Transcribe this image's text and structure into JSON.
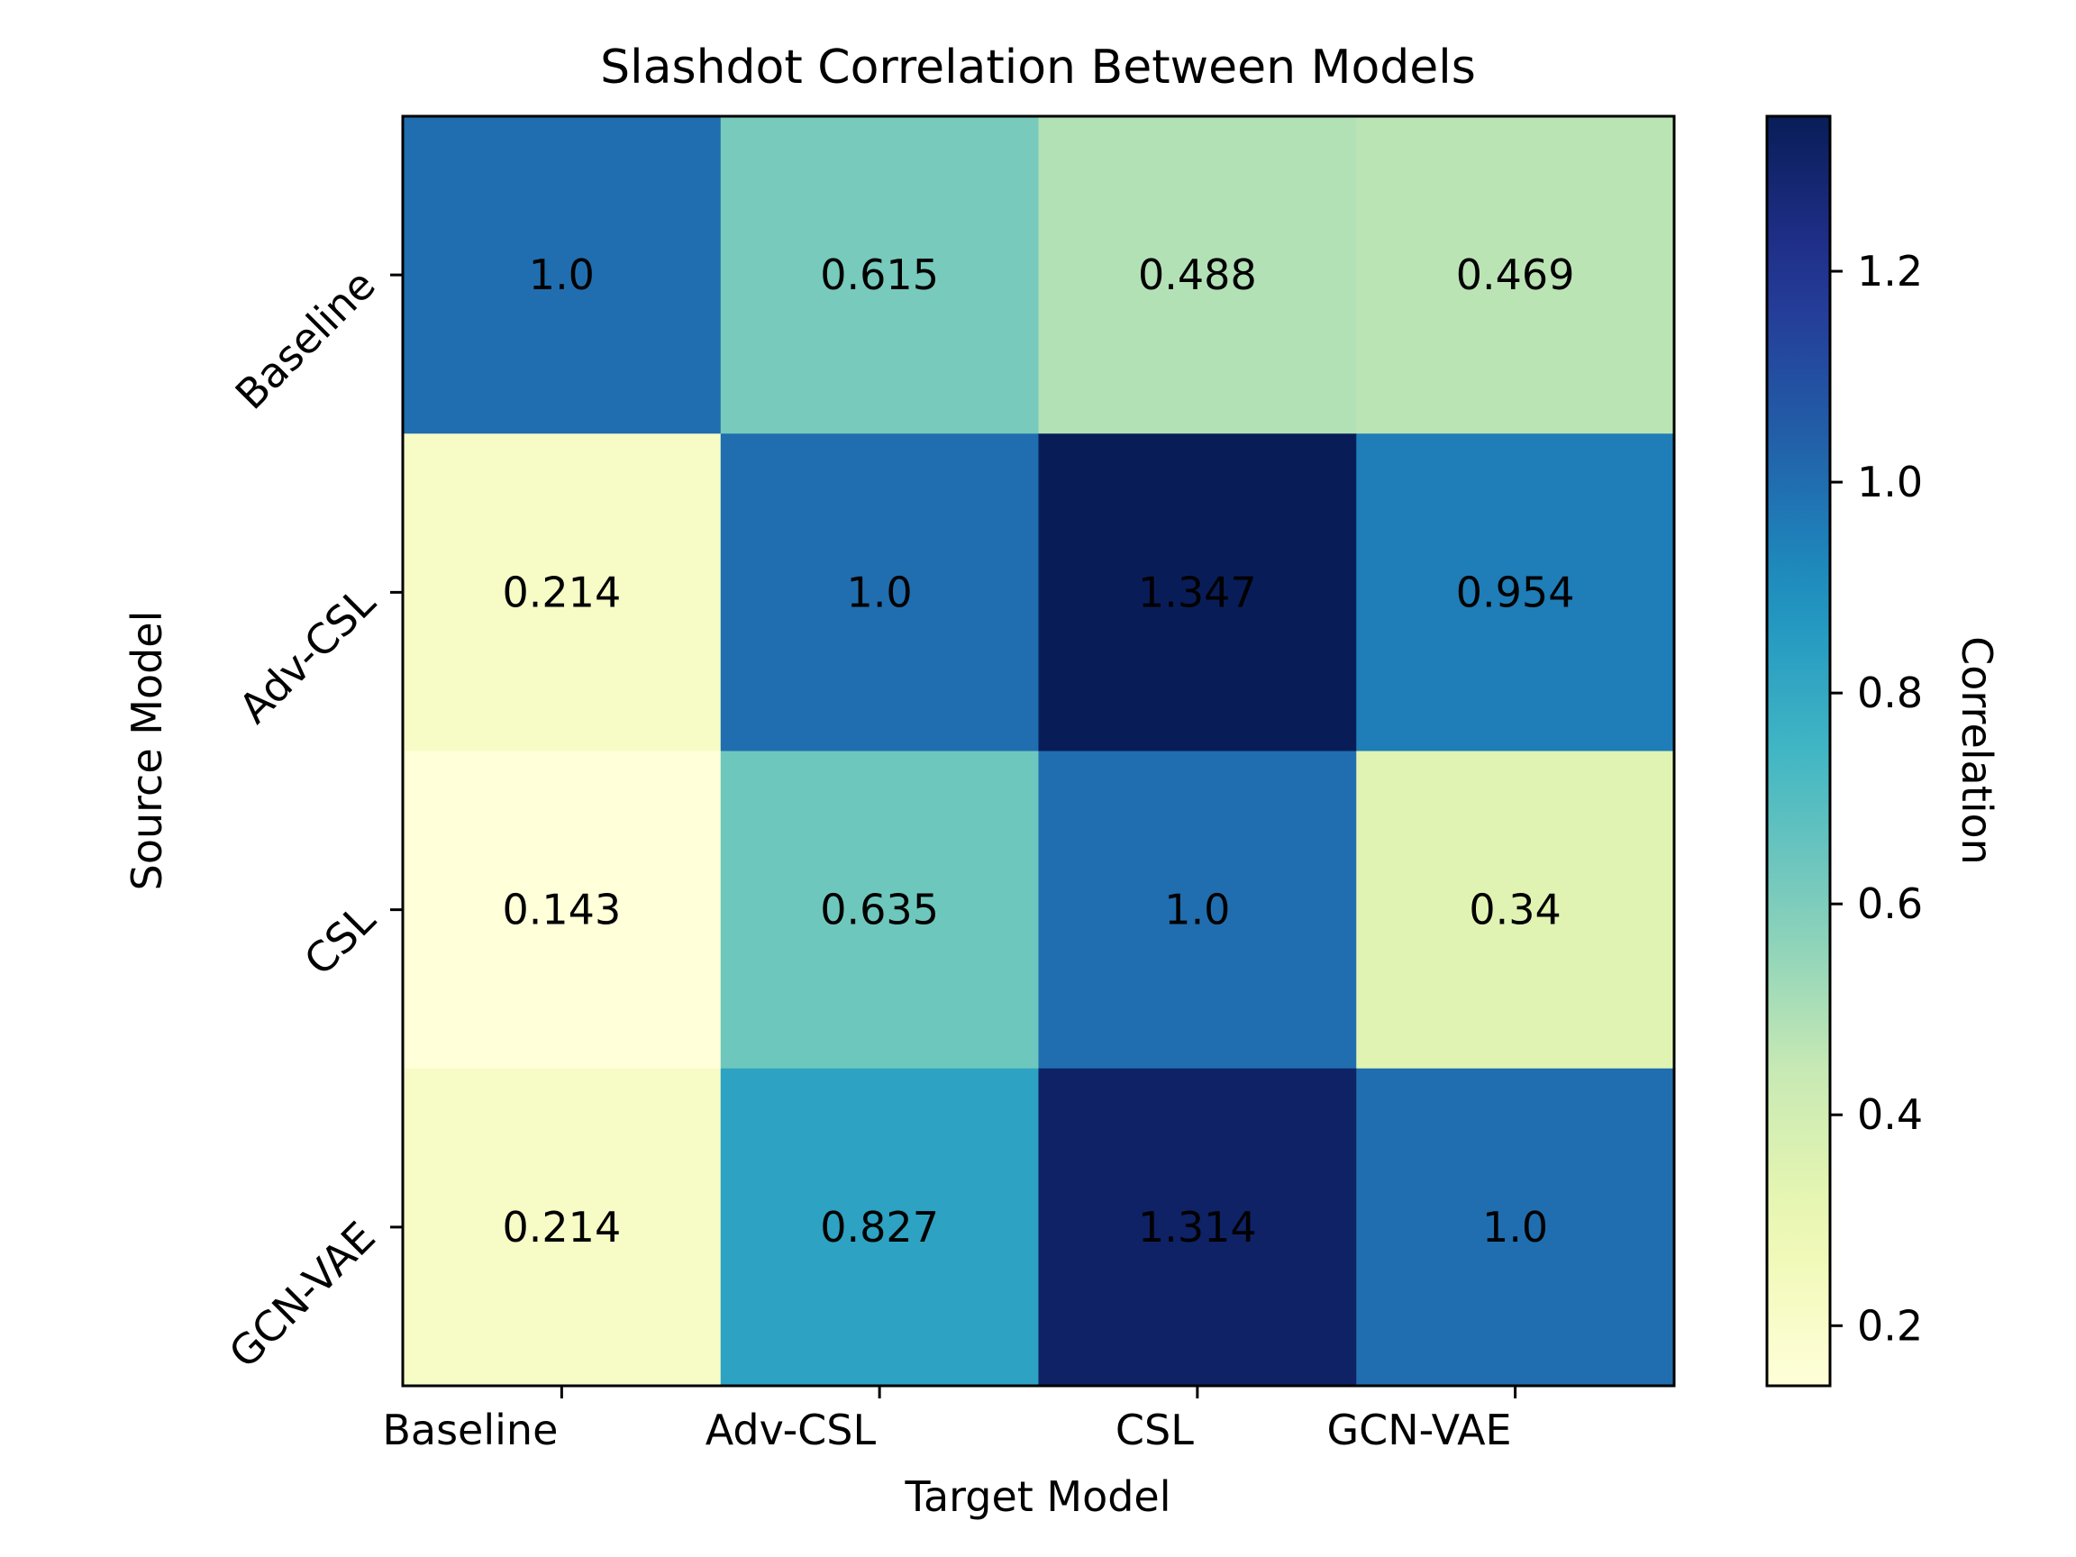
{
  "chart_data": {
    "type": "heatmap",
    "title": "Slashdot Correlation Between Models",
    "xlabel": "Target Model",
    "ylabel": "Source Model",
    "x_categories": [
      "Baseline",
      "Adv-CSL",
      "CSL",
      "GCN-VAE"
    ],
    "y_categories": [
      "Baseline",
      "Adv-CSL",
      "CSL",
      "GCN-VAE"
    ],
    "values": [
      [
        1.0,
        0.615,
        0.488,
        0.469
      ],
      [
        0.214,
        1.0,
        1.347,
        0.954
      ],
      [
        0.143,
        0.635,
        1.0,
        0.34
      ],
      [
        0.214,
        0.827,
        1.314,
        1.0
      ]
    ],
    "cell_labels": [
      [
        "1.0",
        "0.615",
        "0.488",
        "0.469"
      ],
      [
        "0.214",
        "1.0",
        "1.347",
        "0.954"
      ],
      [
        "0.143",
        "0.635",
        "1.0",
        "0.34"
      ],
      [
        "0.214",
        "0.827",
        "1.314",
        "1.0"
      ]
    ],
    "colormap": "YlGnBu",
    "colorbar": {
      "label": "Correlation",
      "range": [
        0.143,
        1.347
      ],
      "ticks": [
        0.2,
        0.4,
        0.6,
        0.8,
        1.0,
        1.2
      ],
      "tick_labels": [
        "0.2",
        "0.4",
        "0.6",
        "0.8",
        "1.0",
        "1.2"
      ]
    },
    "grid": false
  }
}
